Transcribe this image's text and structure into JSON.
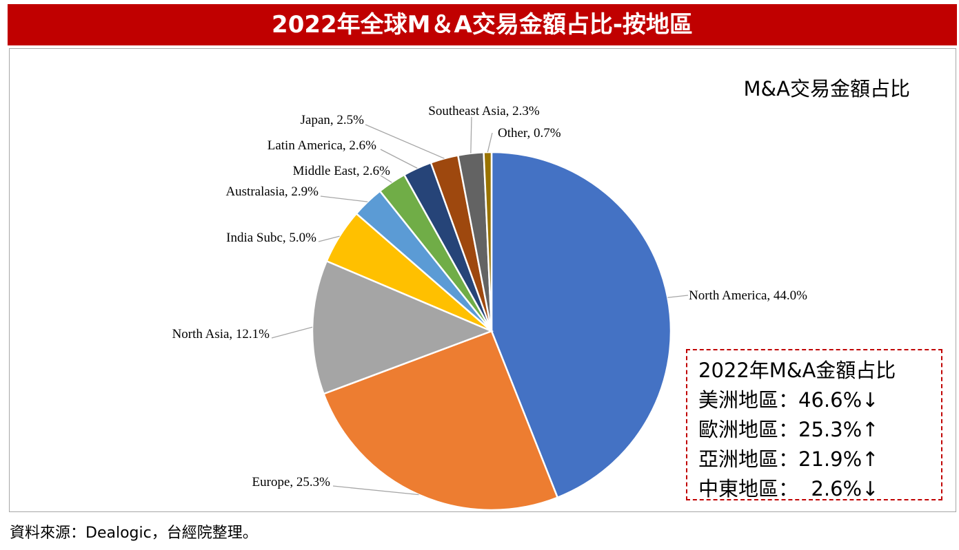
{
  "header": {
    "title": "2022年全球M＆A交易金額占比-按地區"
  },
  "chart_data": {
    "type": "pie",
    "title": "M&A交易金額占比",
    "slices": [
      {
        "name": "North America",
        "value": 44.0,
        "label": "North America, 44.0%",
        "color": "#4472c4"
      },
      {
        "name": "Europe",
        "value": 25.3,
        "label": "Europe, 25.3%",
        "color": "#ed7d31"
      },
      {
        "name": "North Asia",
        "value": 12.1,
        "label": "North Asia, 12.1%",
        "color": "#a5a5a5"
      },
      {
        "name": "India Subc",
        "value": 5.0,
        "label": "India Subc, 5.0%",
        "color": "#ffc000"
      },
      {
        "name": "Australasia",
        "value": 2.9,
        "label": "Australasia, 2.9%",
        "color": "#5b9bd5"
      },
      {
        "name": "Middle East",
        "value": 2.6,
        "label": "Middle East, 2.6%",
        "color": "#70ad47"
      },
      {
        "name": "Latin America",
        "value": 2.6,
        "label": "Latin America, 2.6%",
        "color": "#264478"
      },
      {
        "name": "Japan",
        "value": 2.5,
        "label": "Japan, 2.5%",
        "color": "#9e480e"
      },
      {
        "name": "Southeast Asia",
        "value": 2.3,
        "label": "Southeast Asia, 2.3%",
        "color": "#636363"
      },
      {
        "name": "Other",
        "value": 0.7,
        "label": "Other, 0.7%",
        "color": "#997300"
      }
    ],
    "legend": "none"
  },
  "summary": {
    "title": "2022年M&A金額占比",
    "lines": [
      "美洲地區：46.6%↓",
      "歐洲地區：25.3%↑",
      "亞洲地區：21.9%↑",
      "中東地區：  2.6%↓"
    ]
  },
  "source": "資料來源：Dealogic，台經院整理。"
}
